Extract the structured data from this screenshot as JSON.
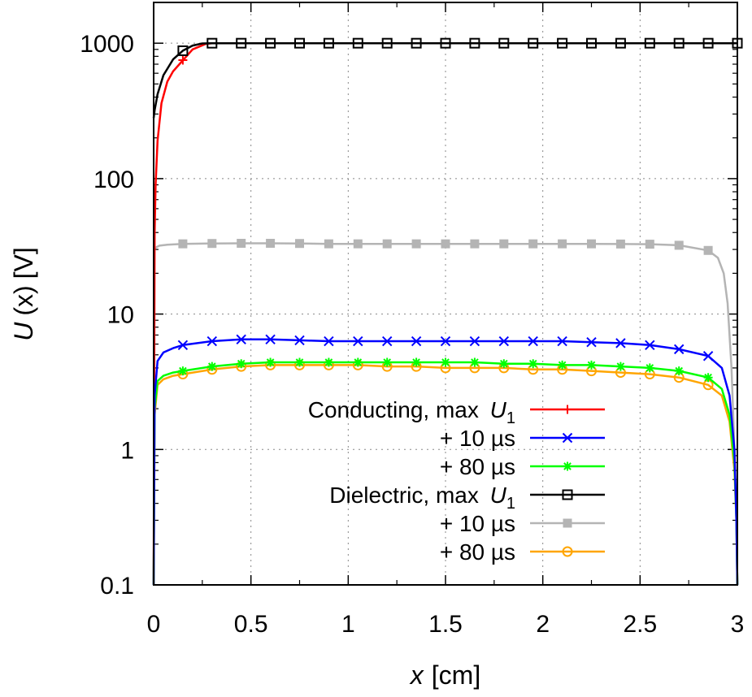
{
  "chart_data": {
    "type": "line",
    "xlabel_var": "x",
    "xlabel_unit": "[cm]",
    "ylabel_var": "U",
    "ylabel_arg": "(x)",
    "ylabel_unit": "[V]",
    "xlim": [
      0,
      3
    ],
    "ylim": [
      0.1,
      2000
    ],
    "yscale": "log",
    "grid": true,
    "legend_position": "bottom-right",
    "x_ticks": [
      "0",
      "0.5",
      "1",
      "1.5",
      "2",
      "2.5",
      "3"
    ],
    "x_tick_values": [
      0,
      0.5,
      1,
      1.5,
      2,
      2.5,
      3
    ],
    "y_ticks": [
      "0.1",
      "1",
      "10",
      "100",
      "1000"
    ],
    "y_tick_values": [
      0.1,
      1,
      10,
      100,
      1000
    ],
    "series": [
      {
        "name": "Conducting, max U1",
        "label_text": "Conducting, max ",
        "label_var": "U",
        "label_sub": "1",
        "color": "#ff0000",
        "marker": "plus",
        "x": [
          0,
          0.005,
          0.01,
          0.02,
          0.04,
          0.07,
          0.1,
          0.14,
          0.2,
          0.27,
          0.3,
          0.45,
          0.6,
          0.75,
          0.9,
          1.05,
          1.2,
          1.35,
          1.5,
          1.65,
          1.8,
          1.95,
          2.1,
          2.25,
          2.4,
          2.55,
          2.7,
          2.85,
          3.0
        ],
        "y": [
          0.1,
          40,
          90,
          190,
          360,
          520,
          620,
          720,
          900,
          990,
          1000,
          1000,
          1000,
          1000,
          1000,
          1000,
          1000,
          1000,
          1000,
          1000,
          1000,
          1000,
          1000,
          1000,
          1000,
          1000,
          1000,
          1000,
          1000
        ],
        "marker_x": [
          0.15
        ]
      },
      {
        "name": "+ 10 µs",
        "label_text": "+ 10 µs",
        "color": "#0000ff",
        "marker": "cross",
        "x": [
          0,
          0.005,
          0.02,
          0.05,
          0.1,
          0.15,
          0.3,
          0.45,
          0.6,
          0.75,
          0.9,
          1.05,
          1.2,
          1.35,
          1.5,
          1.65,
          1.8,
          1.95,
          2.1,
          2.25,
          2.4,
          2.55,
          2.7,
          2.85,
          2.92,
          2.96,
          2.985,
          2.995,
          3.0
        ],
        "y": [
          0.1,
          2.5,
          4.5,
          5.2,
          5.6,
          5.9,
          6.3,
          6.5,
          6.5,
          6.4,
          6.3,
          6.3,
          6.3,
          6.3,
          6.3,
          6.3,
          6.3,
          6.3,
          6.3,
          6.2,
          6.1,
          5.9,
          5.5,
          4.9,
          4.0,
          2.5,
          1.0,
          0.3,
          0.1
        ],
        "marker_x": [
          0.15,
          0.3,
          0.45,
          0.6,
          0.75,
          0.9,
          1.05,
          1.2,
          1.35,
          1.5,
          1.65,
          1.8,
          1.95,
          2.1,
          2.25,
          2.4,
          2.55,
          2.7,
          2.85
        ]
      },
      {
        "name": "+ 80 µs",
        "label_text": "+ 80 µs",
        "color": "#00ff00",
        "marker": "star",
        "x": [
          0,
          0.005,
          0.02,
          0.05,
          0.1,
          0.15,
          0.3,
          0.45,
          0.6,
          0.75,
          0.9,
          1.05,
          1.2,
          1.35,
          1.5,
          1.65,
          1.8,
          1.95,
          2.1,
          2.25,
          2.4,
          2.55,
          2.7,
          2.85,
          2.92,
          2.96,
          2.985,
          2.995,
          3.0
        ],
        "y": [
          0.1,
          2.0,
          3.2,
          3.5,
          3.7,
          3.8,
          4.1,
          4.3,
          4.4,
          4.4,
          4.4,
          4.4,
          4.4,
          4.4,
          4.4,
          4.4,
          4.3,
          4.3,
          4.2,
          4.2,
          4.1,
          4.0,
          3.8,
          3.4,
          2.8,
          1.8,
          0.8,
          0.3,
          0.1
        ],
        "marker_x": [
          0.15,
          0.3,
          0.45,
          0.6,
          0.75,
          0.9,
          1.05,
          1.2,
          1.35,
          1.5,
          1.65,
          1.8,
          1.95,
          2.1,
          2.25,
          2.4,
          2.55,
          2.7,
          2.85
        ]
      },
      {
        "name": "Dielectric, max U1",
        "label_text": "Dielectric, max ",
        "label_var": "U",
        "label_sub": "1",
        "color": "#000000",
        "marker": "square-open",
        "x": [
          0,
          0.005,
          0.02,
          0.05,
          0.1,
          0.15,
          0.2,
          0.25,
          0.3,
          0.45,
          0.6,
          0.75,
          0.9,
          1.05,
          1.2,
          1.35,
          1.5,
          1.65,
          1.8,
          1.95,
          2.1,
          2.25,
          2.4,
          2.55,
          2.7,
          2.85,
          3.0
        ],
        "y": [
          280,
          320,
          420,
          580,
          760,
          880,
          960,
          995,
          1000,
          1000,
          1000,
          1000,
          1000,
          1000,
          1000,
          1000,
          1000,
          1000,
          1000,
          1000,
          1000,
          1000,
          1000,
          1000,
          1000,
          1000,
          1000
        ],
        "marker_x": [
          0.15,
          0.3,
          0.45,
          0.6,
          0.75,
          0.9,
          1.05,
          1.2,
          1.35,
          1.5,
          1.65,
          1.8,
          1.95,
          2.1,
          2.25,
          2.4,
          2.55,
          2.7,
          2.85,
          3.0
        ]
      },
      {
        "name": "+ 10 µs",
        "label_text": "+ 10 µs",
        "color": "#b4b4b4",
        "marker": "square-filled",
        "x": [
          0,
          0.01,
          0.03,
          0.07,
          0.15,
          0.3,
          0.45,
          0.6,
          0.75,
          0.9,
          1.05,
          1.2,
          1.35,
          1.5,
          1.65,
          1.8,
          1.95,
          2.1,
          2.25,
          2.4,
          2.55,
          2.7,
          2.85,
          2.9,
          2.93,
          2.95,
          2.97,
          2.985,
          2.995,
          3.0
        ],
        "y": [
          30,
          31,
          32,
          32.5,
          33,
          33.2,
          33.3,
          33.3,
          33.2,
          33.0,
          33.0,
          33.0,
          33.0,
          33.0,
          33.0,
          33.0,
          33.0,
          33.0,
          33.0,
          32.9,
          32.8,
          32.2,
          29.5,
          26,
          20,
          12,
          4,
          1,
          0.3,
          0.1
        ],
        "marker_x": [
          0.15,
          0.3,
          0.45,
          0.6,
          0.75,
          0.9,
          1.05,
          1.2,
          1.35,
          1.5,
          1.65,
          1.8,
          1.95,
          2.1,
          2.25,
          2.4,
          2.55,
          2.7,
          2.85
        ]
      },
      {
        "name": "+ 80 µs",
        "label_text": "+ 80 µs",
        "color": "#ffa500",
        "marker": "circle-open",
        "x": [
          0,
          0.005,
          0.02,
          0.05,
          0.1,
          0.15,
          0.3,
          0.45,
          0.6,
          0.75,
          0.9,
          1.05,
          1.2,
          1.35,
          1.5,
          1.65,
          1.8,
          1.95,
          2.1,
          2.25,
          2.4,
          2.55,
          2.7,
          2.85,
          2.92,
          2.96,
          2.985,
          2.995,
          3.0
        ],
        "y": [
          0.1,
          1.8,
          3.0,
          3.3,
          3.5,
          3.6,
          3.9,
          4.1,
          4.2,
          4.2,
          4.2,
          4.2,
          4.1,
          4.1,
          4.0,
          4.0,
          4.0,
          3.9,
          3.9,
          3.8,
          3.7,
          3.6,
          3.4,
          3.0,
          2.5,
          1.6,
          0.7,
          0.3,
          0.1
        ],
        "marker_x": [
          0.15,
          0.3,
          0.45,
          0.6,
          0.75,
          0.9,
          1.05,
          1.2,
          1.35,
          1.5,
          1.65,
          1.8,
          1.95,
          2.1,
          2.25,
          2.4,
          2.55,
          2.7,
          2.85
        ]
      }
    ]
  }
}
